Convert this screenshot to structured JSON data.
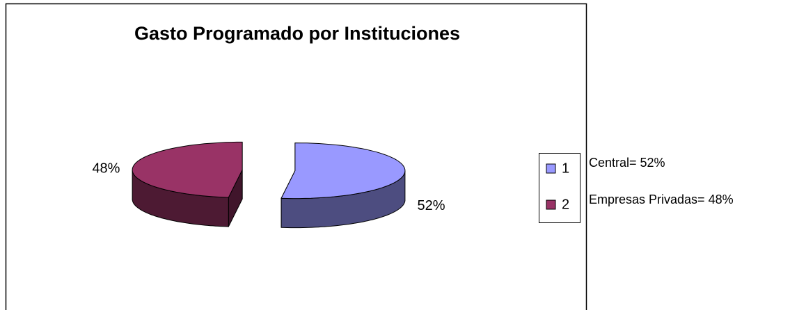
{
  "chart_data": {
    "type": "pie",
    "title": "Gasto Programado por Instituciones",
    "categories": [
      "1",
      "2"
    ],
    "values": [
      52,
      48
    ],
    "value_labels": [
      "52%",
      "48%"
    ],
    "colors": [
      "#9999ff",
      "#993366"
    ],
    "legend": "right",
    "three_d": true,
    "exploded": true,
    "annotations": [
      "Central= 52%",
      "Empresas Privadas= 48%"
    ]
  }
}
